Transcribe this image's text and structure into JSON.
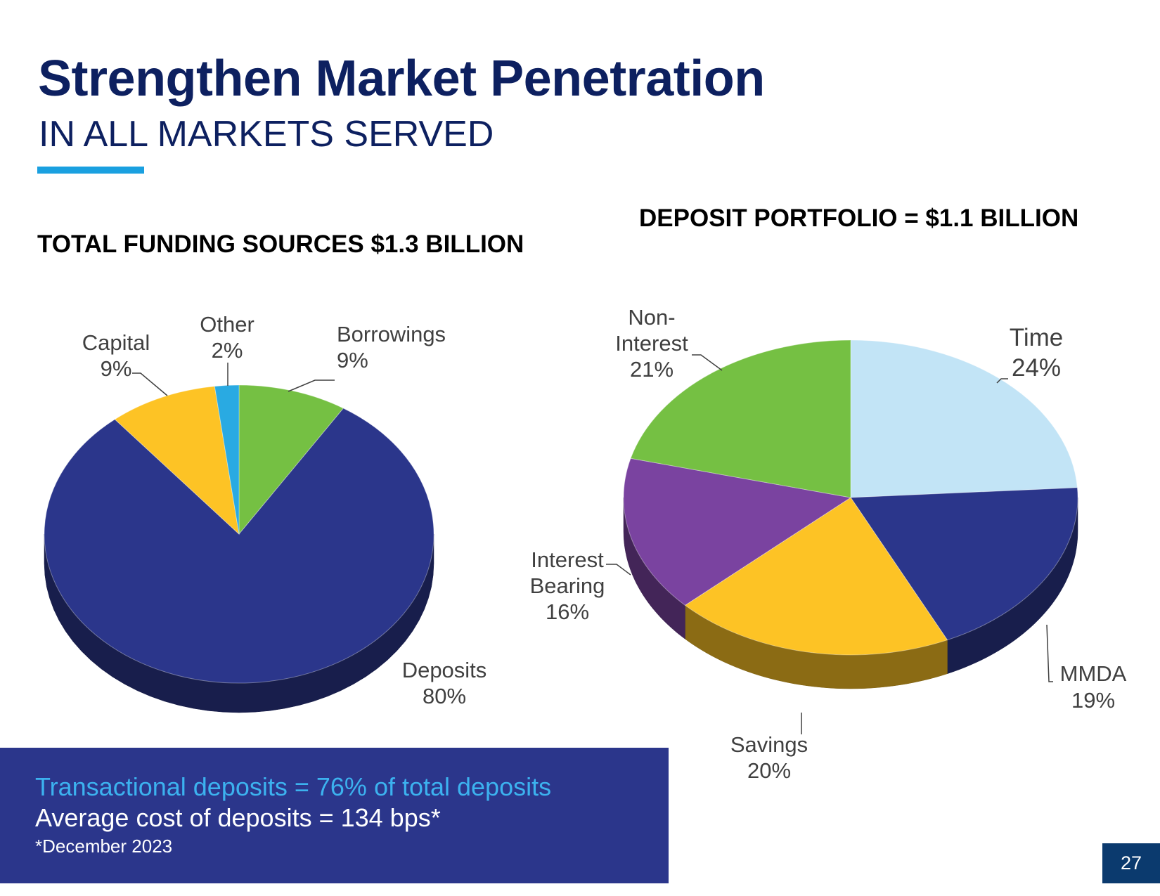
{
  "header": {
    "title": "Strengthen Market Penetration",
    "subtitle": "IN ALL MARKETS SERVED"
  },
  "colors": {
    "navy_title": "#0d2060",
    "accent_blue": "#1aa0e0",
    "box_navy": "#2b368b"
  },
  "chart_data": [
    {
      "type": "pie",
      "title": "TOTAL FUNDING SOURCES $1.3 BILLION",
      "style": "3d",
      "slices": [
        {
          "label": "Borrowings",
          "percent_label": "9%",
          "value": 9,
          "color": "#75c043"
        },
        {
          "label": "Deposits",
          "percent_label": "80%",
          "value": 80,
          "color": "#2b368b"
        },
        {
          "label": "Capital",
          "percent_label": "9%",
          "value": 9,
          "color": "#fdc325"
        },
        {
          "label": "Other",
          "percent_label": "2%",
          "value": 2,
          "color": "#29aae2"
        }
      ]
    },
    {
      "type": "pie",
      "title": "DEPOSIT PORTFOLIO = $1.1 BILLION",
      "style": "3d",
      "slices": [
        {
          "label": "Time",
          "percent_label": "24%",
          "value": 24,
          "color": "#c2e4f6"
        },
        {
          "label": "MMDA",
          "percent_label": "19%",
          "value": 19,
          "color": "#2b368b"
        },
        {
          "label": "Savings",
          "percent_label": "20%",
          "value": 20,
          "color": "#fdc325"
        },
        {
          "label": "Interest Bearing",
          "line1": "Interest",
          "line2": "Bearing",
          "percent_label": "16%",
          "value": 16,
          "color": "#7a43a0"
        },
        {
          "label": "Non-Interest",
          "line1": "Non-",
          "line2": "Interest",
          "percent_label": "21%",
          "value": 21,
          "color": "#75c043"
        }
      ]
    }
  ],
  "info_box": {
    "line1": "Transactional deposits = 76% of total deposits",
    "line2": "Average cost of deposits = 134 bps*",
    "note": "*December 2023"
  },
  "footer": {
    "page_number": "27"
  }
}
